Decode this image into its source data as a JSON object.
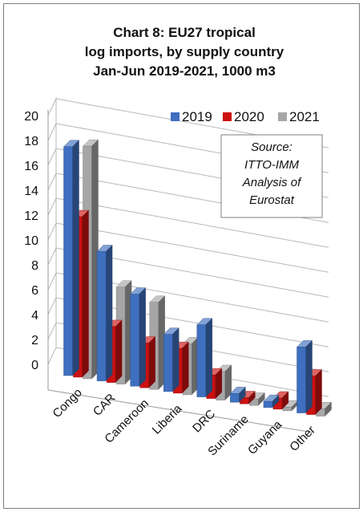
{
  "chart_data": {
    "type": "bar",
    "title_lines": [
      "Chart 8: EU27 tropical",
      "log imports, by supply country",
      "Jan-Jun 2019-2021, 1000 m3"
    ],
    "categories": [
      "Congo",
      "CAR",
      "Cameroon",
      "Liberia",
      "DRC",
      "Suriname",
      "Guyana",
      "Other"
    ],
    "series": [
      {
        "name": "2019",
        "color": "#3f6fbf",
        "values": [
          18.4,
          10.4,
          7.4,
          4.6,
          5.8,
          0.7,
          0.5,
          5.3
        ]
      },
      {
        "name": "2020",
        "color": "#cc1111",
        "values": [
          12.9,
          4.5,
          3.6,
          3.6,
          1.9,
          0.5,
          0.9,
          3.1
        ]
      },
      {
        "name": "2021",
        "color": "#a6a6a6",
        "values": [
          18.7,
          7.8,
          7.0,
          4.1,
          2.3,
          0.5,
          0.3,
          0.6
        ]
      }
    ],
    "y_ticks": [
      0,
      2,
      4,
      6,
      8,
      10,
      12,
      14,
      16,
      18,
      20
    ],
    "ylim": [
      0,
      20
    ],
    "legend_position": "top-right",
    "annotation": [
      "Source:",
      "ITTO-IMM",
      "Analysis of",
      "Eurostat"
    ],
    "grid": true
  }
}
